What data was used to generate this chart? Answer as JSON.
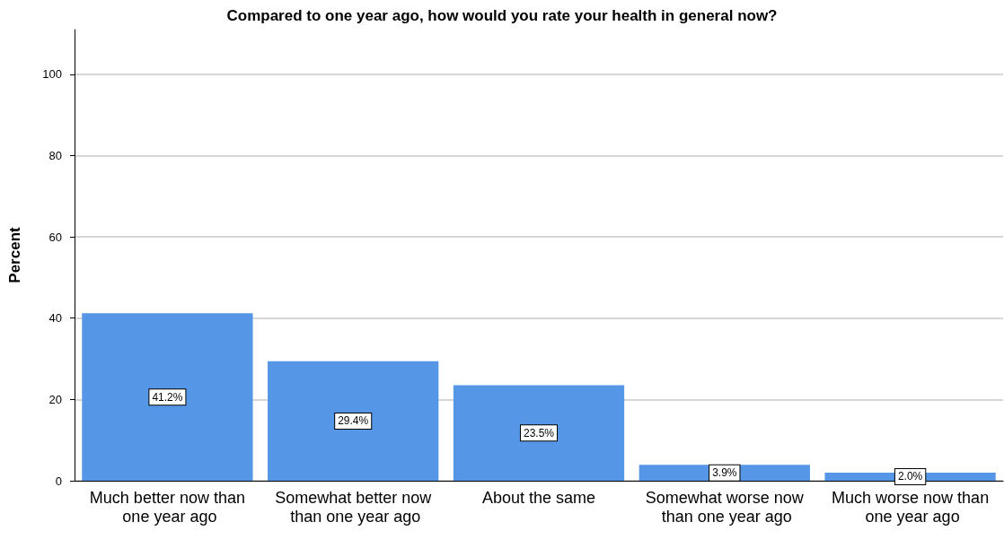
{
  "chart_data": {
    "type": "bar",
    "title": "Compared to one year ago, how would you rate your health in general now?",
    "categories": [
      "Much better now than one year ago",
      "Somewhat better now than one year ago",
      "About the same",
      "Somewhat worse now than one year ago",
      "Much worse now than one year ago"
    ],
    "values": [
      41.2,
      29.4,
      23.5,
      3.9,
      2.0
    ],
    "value_labels": [
      "41.2%",
      "29.4%",
      "23.5%",
      "3.9%",
      "2.0%"
    ],
    "color": "#5596e6",
    "ylabel": "Percent",
    "ylim": [
      0,
      111
    ],
    "yticks": [
      0,
      20,
      40,
      60,
      80,
      100
    ],
    "grid": "y"
  }
}
